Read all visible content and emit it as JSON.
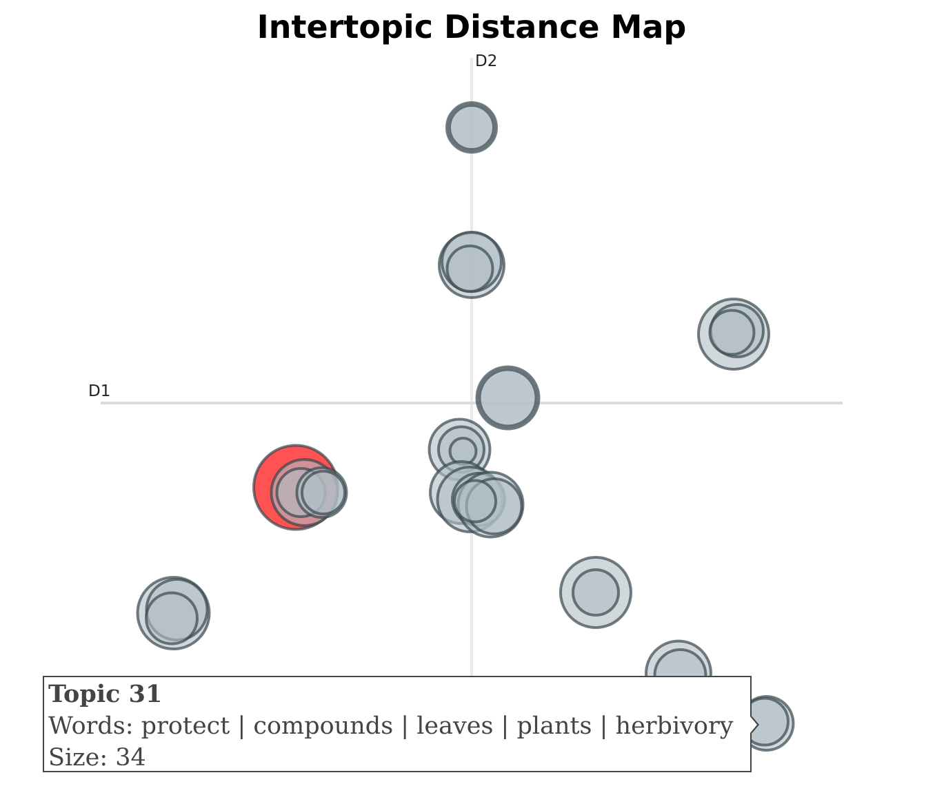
{
  "chart_data": {
    "type": "scatter",
    "title": "Intertopic Distance Map",
    "xlabel": "D1",
    "ylabel": "D2",
    "xlim": [
      -10,
      10
    ],
    "ylim": [
      -10,
      10
    ],
    "grid": false,
    "topics": [
      {
        "x": 0.0,
        "y": 8.0,
        "r": 36
      },
      {
        "x": 0.0,
        "y": 8.0,
        "r": 32
      },
      {
        "x": 0.0,
        "y": 4.0,
        "r": 47
      },
      {
        "x": 0.0,
        "y": 4.1,
        "r": 43
      },
      {
        "x": -0.05,
        "y": 3.9,
        "r": 33
      },
      {
        "x": 7.6,
        "y": 2.0,
        "r": 51
      },
      {
        "x": 7.7,
        "y": 2.1,
        "r": 38
      },
      {
        "x": 7.55,
        "y": 2.05,
        "r": 32
      },
      {
        "x": 1.05,
        "y": 0.15,
        "r": 45
      },
      {
        "x": 1.05,
        "y": 0.15,
        "r": 41
      },
      {
        "x": -0.35,
        "y": -1.35,
        "r": 44
      },
      {
        "x": -0.3,
        "y": -1.35,
        "r": 33
      },
      {
        "x": -0.25,
        "y": -1.4,
        "r": 19
      },
      {
        "x": -5.1,
        "y": -2.45,
        "r": 61
      },
      {
        "x": -4.85,
        "y": -2.6,
        "r": 48
      },
      {
        "x": -4.95,
        "y": -2.6,
        "r": 35
      },
      {
        "x": -4.35,
        "y": -2.6,
        "r": 36
      },
      {
        "x": -4.3,
        "y": -2.6,
        "r": 31
      },
      {
        "x": -0.3,
        "y": -2.6,
        "r": 45
      },
      {
        "x": -0.05,
        "y": -2.8,
        "r": 47
      },
      {
        "x": 0.2,
        "y": -2.8,
        "r": 38
      },
      {
        "x": 0.55,
        "y": -2.95,
        "r": 47
      },
      {
        "x": 0.65,
        "y": -3.0,
        "r": 40
      },
      {
        "x": 0.1,
        "y": -2.85,
        "r": 30
      },
      {
        "x": 3.6,
        "y": -5.5,
        "r": 51
      },
      {
        "x": 3.6,
        "y": -5.5,
        "r": 33
      },
      {
        "x": -8.65,
        "y": -6.1,
        "r": 52
      },
      {
        "x": -8.55,
        "y": -6.0,
        "r": 44
      },
      {
        "x": -8.7,
        "y": -6.25,
        "r": 37
      },
      {
        "x": 6.0,
        "y": -7.85,
        "r": 47
      },
      {
        "x": 6.05,
        "y": -7.9,
        "r": 37
      },
      {
        "x": 8.55,
        "y": -9.3,
        "r": 39
      },
      {
        "x": 8.5,
        "y": -9.25,
        "r": 34
      }
    ],
    "highlight": {
      "x": -5.1,
      "y": -2.45,
      "color": "#ff5252"
    }
  },
  "tooltip": {
    "title": "Topic 31",
    "words": "Words: protect | compounds | leaves | plants | herbivory",
    "size": "Size: 34"
  }
}
